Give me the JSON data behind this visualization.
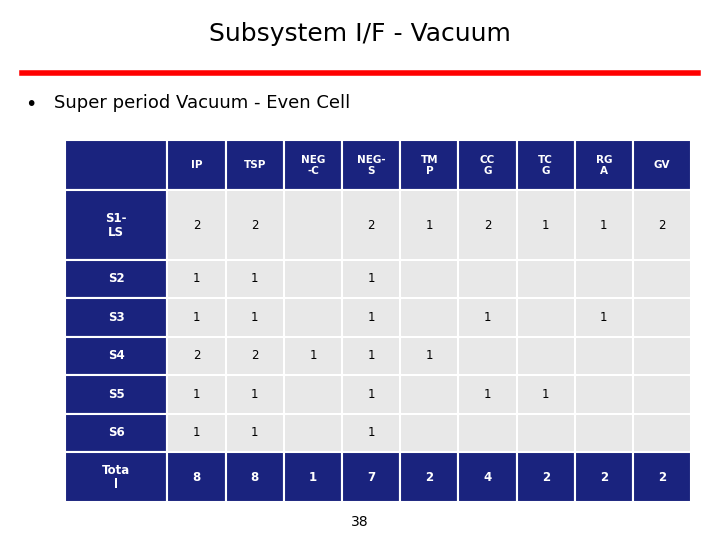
{
  "title": "Subsystem I/F - Vacuum",
  "subtitle": "Super period Vacuum - Even Cell",
  "page_number": "38",
  "col_headers": [
    "",
    "IP",
    "TSP",
    "NEG\n-C",
    "NEG-\nS",
    "TM\nP",
    "CC\nG",
    "TC\nG",
    "RG\nA",
    "GV"
  ],
  "row_labels": [
    "S1-\nLS",
    "S2",
    "S3",
    "S4",
    "S5",
    "S6",
    "Tota\nl"
  ],
  "table_data": [
    [
      "2",
      "2",
      "",
      "2",
      "1",
      "2",
      "1",
      "1",
      "2"
    ],
    [
      "1",
      "1",
      "",
      "1",
      "",
      "",
      "",
      "",
      ""
    ],
    [
      "1",
      "1",
      "",
      "1",
      "",
      "1",
      "",
      "1",
      ""
    ],
    [
      "2",
      "2",
      "1",
      "1",
      "1",
      "",
      "",
      "",
      ""
    ],
    [
      "1",
      "1",
      "",
      "1",
      "",
      "1",
      "1",
      "",
      ""
    ],
    [
      "1",
      "1",
      "",
      "1",
      "",
      "",
      "",
      "",
      ""
    ],
    [
      "8",
      "8",
      "1",
      "7",
      "2",
      "4",
      "2",
      "2",
      "2"
    ]
  ],
  "header_bg": "#1a237e",
  "header_fg": "#ffffff",
  "row_label_bg": "#1a237e",
  "row_label_fg": "#ffffff",
  "total_row_bg": "#1a237e",
  "total_row_fg": "#ffffff",
  "data_bg": "#e8e8e8",
  "data_fg": "#000000",
  "title_color": "#000000",
  "red_line_color": "#ff0000",
  "bullet_color": "#000000",
  "figsize": [
    7.2,
    5.4
  ],
  "dpi": 100
}
